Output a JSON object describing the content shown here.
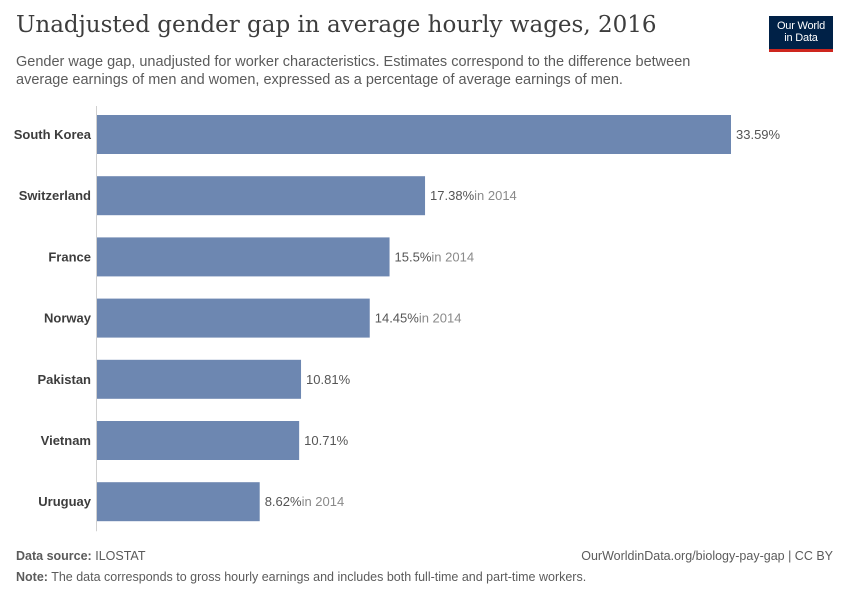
{
  "header": {
    "title": "Unadjusted gender gap in average hourly wages, 2016",
    "subtitle": "Gender wage gap, unadjusted for worker characteristics. Estimates correspond to the difference between average earnings of men and women, expressed as a percentage of average earnings of men."
  },
  "logo": {
    "line1": "Our World",
    "line2": "in Data"
  },
  "colors": {
    "bar": "#6d87b1",
    "label": "#3d3d3d",
    "value": "#555555",
    "year_note": "#8a8a8a",
    "axis": "#d0d0d0"
  },
  "chart_data": {
    "type": "bar",
    "orientation": "horizontal",
    "title": "Unadjusted gender gap in average hourly wages, 2016",
    "xlabel": "",
    "ylabel": "",
    "xlim": [
      0,
      33.59
    ],
    "categories": [
      "South Korea",
      "Switzerland",
      "France",
      "Norway",
      "Pakistan",
      "Vietnam",
      "Uruguay"
    ],
    "values": [
      33.59,
      17.38,
      15.5,
      14.45,
      10.81,
      10.71,
      8.62
    ],
    "value_labels": [
      "33.59%",
      "17.38%",
      "15.5%",
      "14.45%",
      "10.81%",
      "10.71%",
      "8.62%"
    ],
    "year_notes": [
      "",
      "in 2014",
      "in 2014",
      "in 2014",
      "",
      "",
      "in 2014"
    ]
  },
  "footer": {
    "source_label": "Data source:",
    "source": "ILOSTAT",
    "url": "OurWorldinData.org/biology-pay-gap | CC BY",
    "note_label": "Note:",
    "note": "The data corresponds to gross hourly earnings and includes both full-time and part-time workers."
  }
}
